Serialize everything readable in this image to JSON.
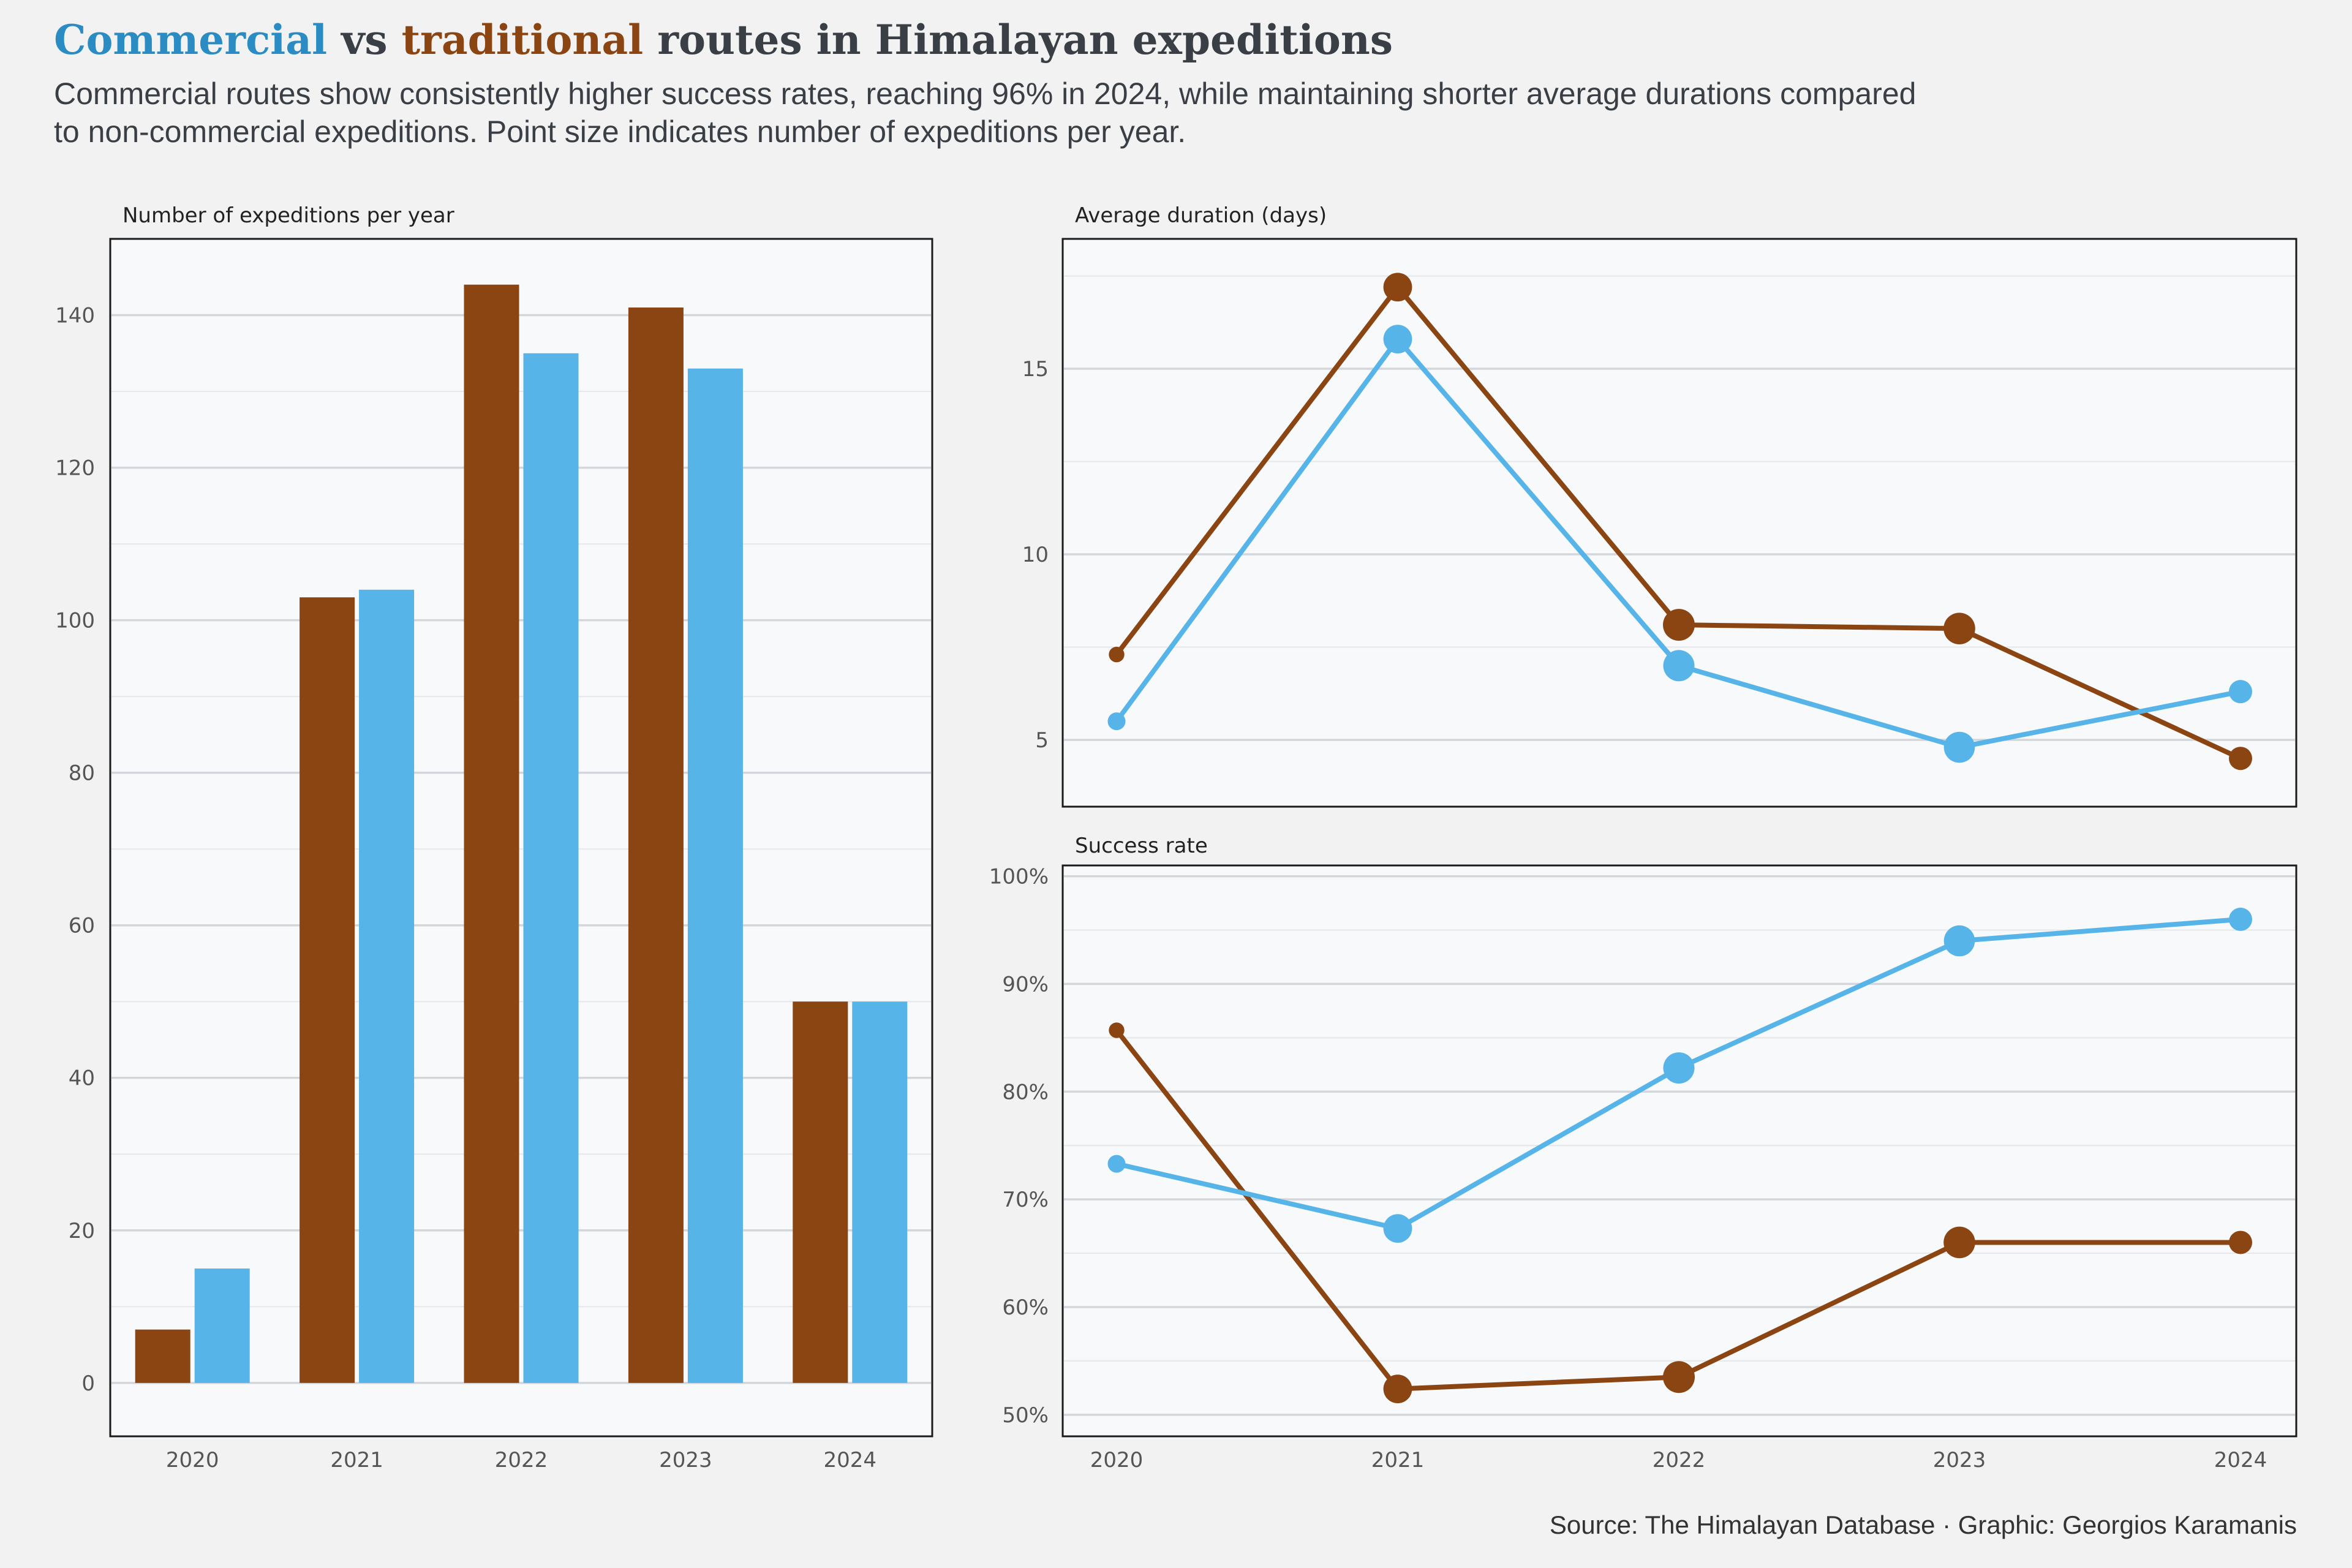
{
  "title": {
    "word_commercial": "Commercial",
    "word_vs": " vs ",
    "word_traditional": "traditional",
    "word_rest": " routes in Himalayan expeditions"
  },
  "subtitle": {
    "line1": "Commercial routes show consistently higher success rates, reaching 96% in 2024, while maintaining shorter average durations compared",
    "line2": "to non-commercial expeditions. Point size indicates number of expeditions per year."
  },
  "caption": "Source: The Himalayan Database · Graphic: Georgios Karamanis",
  "colors": {
    "commercial": "#56b4e9",
    "traditional": "#8b4513",
    "title_commercial": "#2b8cc4",
    "title_traditional": "#8b4513"
  },
  "chart_data": [
    {
      "type": "bar",
      "title": "Number of expeditions per year",
      "categories": [
        "2020",
        "2021",
        "2022",
        "2023",
        "2024"
      ],
      "series": [
        {
          "key": "traditional",
          "values": [
            7,
            103,
            144,
            141,
            50
          ]
        },
        {
          "key": "commercial",
          "values": [
            15,
            104,
            135,
            133,
            50
          ]
        }
      ],
      "ylim": [
        -7,
        150
      ],
      "yticks": [
        0,
        20,
        40,
        60,
        80,
        100,
        120,
        140
      ],
      "ytick_labels": [
        "0",
        "20",
        "40",
        "60",
        "80",
        "100",
        "120",
        "140"
      ]
    },
    {
      "type": "line",
      "title": "Average duration (days)",
      "x": [
        "2020",
        "2021",
        "2022",
        "2023",
        "2024"
      ],
      "series": [
        {
          "key": "traditional",
          "values": [
            7.3,
            17.2,
            8.1,
            8.0,
            4.5
          ]
        },
        {
          "key": "commercial",
          "values": [
            5.5,
            15.8,
            7.0,
            4.8,
            6.3
          ]
        }
      ],
      "ylim": [
        3.2,
        18.5
      ],
      "yticks": [
        5,
        10,
        15
      ],
      "ytick_labels": [
        "5",
        "10",
        "15"
      ]
    },
    {
      "type": "line",
      "title": "Success rate",
      "x": [
        "2020",
        "2021",
        "2022",
        "2023",
        "2024"
      ],
      "series": [
        {
          "key": "traditional",
          "values": [
            0.857,
            0.524,
            0.535,
            0.66,
            0.66
          ]
        },
        {
          "key": "commercial",
          "values": [
            0.733,
            0.673,
            0.822,
            0.94,
            0.96
          ]
        }
      ],
      "ylim": [
        0.48,
        1.01
      ],
      "yticks": [
        0.5,
        0.6,
        0.7,
        0.8,
        0.9,
        1.0
      ],
      "ytick_labels": [
        "50%",
        "60%",
        "70%",
        "80%",
        "90%",
        "100%"
      ],
      "xtick_labels": [
        "2020",
        "2021",
        "2022",
        "2023",
        "2024"
      ]
    }
  ]
}
